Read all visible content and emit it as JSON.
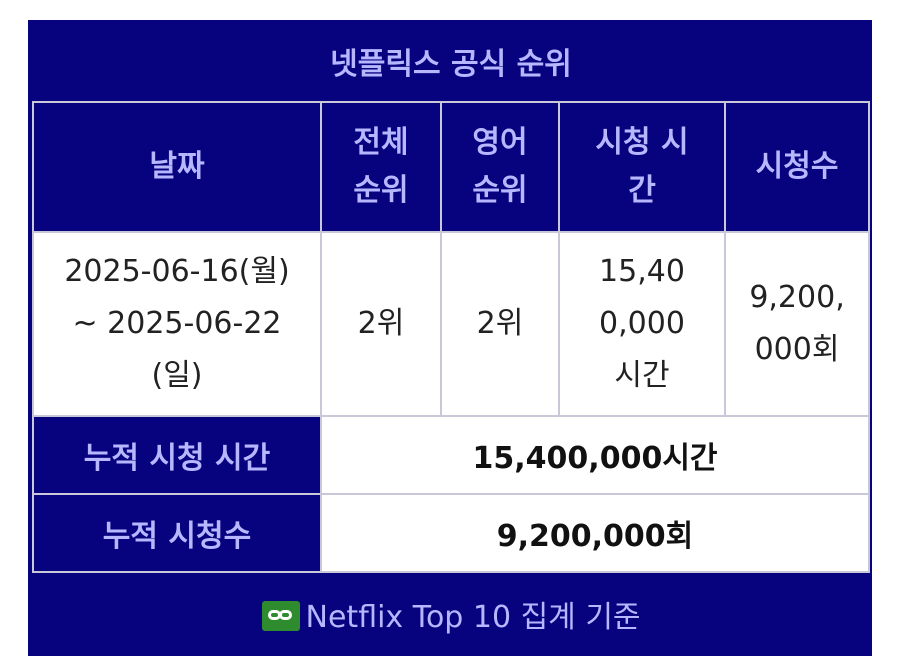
{
  "title": "넷플릭스 공식 순위",
  "headers": {
    "date": "날짜",
    "overall_rank": "전체 순위",
    "english_rank": "영어 순위",
    "view_hours": "시청 시간",
    "views": "시청수"
  },
  "row": {
    "date": "2025-06-16(월) ~ 2025-06-22 (일)",
    "overall_rank": "2위",
    "english_rank": "2위",
    "view_hours": "15,400,000시간",
    "views": "9,200,000회"
  },
  "summary": {
    "cumulative_hours_label": "누적 시청 시간",
    "cumulative_hours_value": "15,400,000시간",
    "cumulative_views_label": "누적 시청수",
    "cumulative_views_value": "9,200,000회"
  },
  "footer": {
    "icon": "link-icon",
    "text": "Netflix Top 10 집계 기준",
    "icon_color": "#2e8b2e"
  },
  "colors": {
    "header_bg": "#07037f",
    "header_text": "#b7b7ff"
  }
}
